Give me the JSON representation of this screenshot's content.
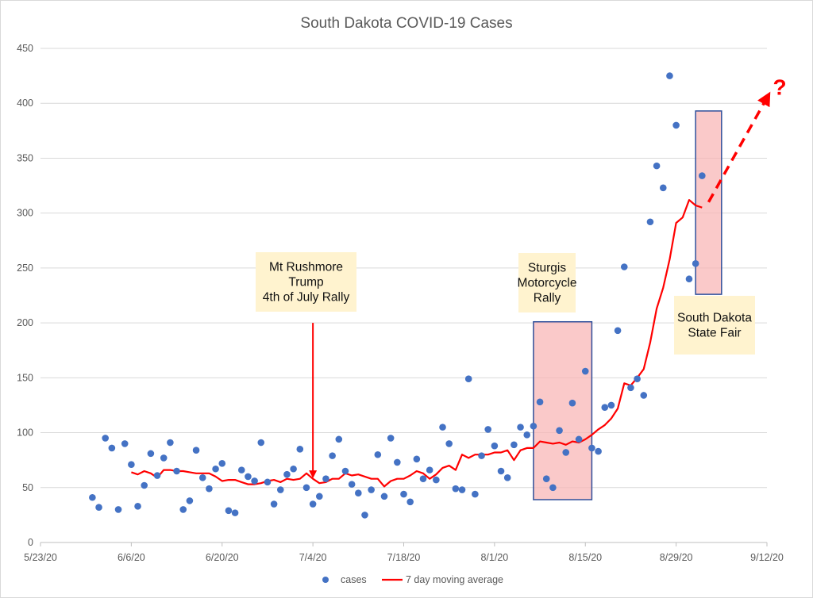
{
  "chart_data": {
    "type": "scatter",
    "title": "South Dakota COVID-19 Cases",
    "xlabel": "",
    "ylabel": "",
    "x_ticks": [
      "5/23/20",
      "6/6/20",
      "6/20/20",
      "7/4/20",
      "7/18/20",
      "8/1/20",
      "8/15/20",
      "8/29/20",
      "9/12/20"
    ],
    "x_range": [
      "5/23/20",
      "9/12/20"
    ],
    "y_ticks": [
      0,
      50,
      100,
      150,
      200,
      250,
      300,
      350,
      400,
      450
    ],
    "ylim": [
      0,
      450
    ],
    "grid": "horizontal",
    "legend_position": "bottom",
    "series": [
      {
        "name": "cases",
        "kind": "scatter",
        "color": "#4472c4",
        "points": [
          [
            "5/31/20",
            41
          ],
          [
            "6/1/20",
            32
          ],
          [
            "6/2/20",
            95
          ],
          [
            "6/3/20",
            86
          ],
          [
            "6/4/20",
            30
          ],
          [
            "6/5/20",
            90
          ],
          [
            "6/6/20",
            71
          ],
          [
            "6/7/20",
            33
          ],
          [
            "6/8/20",
            52
          ],
          [
            "6/9/20",
            81
          ],
          [
            "6/10/20",
            61
          ],
          [
            "6/11/20",
            77
          ],
          [
            "6/12/20",
            91
          ],
          [
            "6/13/20",
            65
          ],
          [
            "6/14/20",
            30
          ],
          [
            "6/15/20",
            38
          ],
          [
            "6/16/20",
            84
          ],
          [
            "6/17/20",
            59
          ],
          [
            "6/18/20",
            49
          ],
          [
            "6/19/20",
            67
          ],
          [
            "6/20/20",
            72
          ],
          [
            "6/21/20",
            29
          ],
          [
            "6/22/20",
            27
          ],
          [
            "6/23/20",
            66
          ],
          [
            "6/24/20",
            60
          ],
          [
            "6/25/20",
            56
          ],
          [
            "6/26/20",
            91
          ],
          [
            "6/27/20",
            55
          ],
          [
            "6/28/20",
            35
          ],
          [
            "6/29/20",
            48
          ],
          [
            "6/30/20",
            62
          ],
          [
            "7/1/20",
            67
          ],
          [
            "7/2/20",
            85
          ],
          [
            "7/3/20",
            50
          ],
          [
            "7/4/20",
            35
          ],
          [
            "7/5/20",
            42
          ],
          [
            "7/6/20",
            58
          ],
          [
            "7/7/20",
            79
          ],
          [
            "7/8/20",
            94
          ],
          [
            "7/9/20",
            65
          ],
          [
            "7/10/20",
            53
          ],
          [
            "7/11/20",
            45
          ],
          [
            "7/12/20",
            25
          ],
          [
            "7/13/20",
            48
          ],
          [
            "7/14/20",
            80
          ],
          [
            "7/15/20",
            42
          ],
          [
            "7/16/20",
            95
          ],
          [
            "7/17/20",
            73
          ],
          [
            "7/18/20",
            44
          ],
          [
            "7/19/20",
            37
          ],
          [
            "7/20/20",
            76
          ],
          [
            "7/21/20",
            58
          ],
          [
            "7/22/20",
            66
          ],
          [
            "7/23/20",
            57
          ],
          [
            "7/24/20",
            105
          ],
          [
            "7/25/20",
            90
          ],
          [
            "7/26/20",
            49
          ],
          [
            "7/27/20",
            48
          ],
          [
            "7/28/20",
            149
          ],
          [
            "7/29/20",
            44
          ],
          [
            "7/30/20",
            79
          ],
          [
            "7/31/20",
            103
          ],
          [
            "8/1/20",
            88
          ],
          [
            "8/2/20",
            65
          ],
          [
            "8/3/20",
            59
          ],
          [
            "8/4/20",
            89
          ],
          [
            "8/5/20",
            105
          ],
          [
            "8/6/20",
            98
          ],
          [
            "8/7/20",
            106
          ],
          [
            "8/8/20",
            128
          ],
          [
            "8/9/20",
            58
          ],
          [
            "8/10/20",
            50
          ],
          [
            "8/11/20",
            102
          ],
          [
            "8/12/20",
            82
          ],
          [
            "8/13/20",
            127
          ],
          [
            "8/14/20",
            94
          ],
          [
            "8/15/20",
            156
          ],
          [
            "8/16/20",
            86
          ],
          [
            "8/17/20",
            83
          ],
          [
            "8/18/20",
            123
          ],
          [
            "8/19/20",
            125
          ],
          [
            "8/20/20",
            193
          ],
          [
            "8/21/20",
            251
          ],
          [
            "8/22/20",
            141
          ],
          [
            "8/23/20",
            149
          ],
          [
            "8/24/20",
            134
          ],
          [
            "8/25/20",
            292
          ],
          [
            "8/26/20",
            343
          ],
          [
            "8/27/20",
            323
          ],
          [
            "8/28/20",
            425
          ],
          [
            "8/29/20",
            380
          ],
          [
            "8/31/20",
            240
          ],
          [
            "9/1/20",
            254
          ],
          [
            "9/2/20",
            334
          ]
        ]
      },
      {
        "name": "7 day moving average",
        "kind": "line",
        "color": "#ff0000",
        "points": [
          [
            "6/6/20",
            64
          ],
          [
            "6/7/20",
            62
          ],
          [
            "6/8/20",
            65
          ],
          [
            "6/9/20",
            63
          ],
          [
            "6/10/20",
            59
          ],
          [
            "6/11/20",
            66
          ],
          [
            "6/12/20",
            66
          ],
          [
            "6/13/20",
            65
          ],
          [
            "6/14/20",
            65
          ],
          [
            "6/15/20",
            64
          ],
          [
            "6/16/20",
            63
          ],
          [
            "6/17/20",
            63
          ],
          [
            "6/18/20",
            63
          ],
          [
            "6/19/20",
            60
          ],
          [
            "6/20/20",
            56
          ],
          [
            "6/21/20",
            57
          ],
          [
            "6/22/20",
            57
          ],
          [
            "6/23/20",
            55
          ],
          [
            "6/24/20",
            53
          ],
          [
            "6/25/20",
            53
          ],
          [
            "6/26/20",
            54
          ],
          [
            "6/27/20",
            56
          ],
          [
            "6/28/20",
            57
          ],
          [
            "6/29/20",
            55
          ],
          [
            "6/30/20",
            58
          ],
          [
            "7/1/20",
            57
          ],
          [
            "7/2/20",
            58
          ],
          [
            "7/3/20",
            63
          ],
          [
            "7/4/20",
            58
          ],
          [
            "7/5/20",
            54
          ],
          [
            "7/6/20",
            55
          ],
          [
            "7/7/20",
            58
          ],
          [
            "7/8/20",
            58
          ],
          [
            "7/9/20",
            63
          ],
          [
            "7/10/20",
            61
          ],
          [
            "7/11/20",
            62
          ],
          [
            "7/12/20",
            60
          ],
          [
            "7/13/20",
            58
          ],
          [
            "7/14/20",
            58
          ],
          [
            "7/15/20",
            51
          ],
          [
            "7/16/20",
            56
          ],
          [
            "7/17/20",
            58
          ],
          [
            "7/18/20",
            58
          ],
          [
            "7/19/20",
            61
          ],
          [
            "7/20/20",
            65
          ],
          [
            "7/21/20",
            63
          ],
          [
            "7/22/20",
            58
          ],
          [
            "7/23/20",
            62
          ],
          [
            "7/24/20",
            68
          ],
          [
            "7/25/20",
            70
          ],
          [
            "7/26/20",
            66
          ],
          [
            "7/27/20",
            80
          ],
          [
            "7/28/20",
            77
          ],
          [
            "7/29/20",
            80
          ],
          [
            "7/30/20",
            80
          ],
          [
            "7/31/20",
            80
          ],
          [
            "8/1/20",
            82
          ],
          [
            "8/2/20",
            82
          ],
          [
            "8/3/20",
            84
          ],
          [
            "8/4/20",
            75
          ],
          [
            "8/5/20",
            84
          ],
          [
            "8/6/20",
            86
          ],
          [
            "8/7/20",
            86
          ],
          [
            "8/8/20",
            92
          ],
          [
            "8/9/20",
            91
          ],
          [
            "8/10/20",
            90
          ],
          [
            "8/11/20",
            91
          ],
          [
            "8/12/20",
            89
          ],
          [
            "8/13/20",
            92
          ],
          [
            "8/14/20",
            91
          ],
          [
            "8/15/20",
            94
          ],
          [
            "8/16/20",
            98
          ],
          [
            "8/17/20",
            103
          ],
          [
            "8/18/20",
            107
          ],
          [
            "8/19/20",
            113
          ],
          [
            "8/20/20",
            122
          ],
          [
            "8/21/20",
            145
          ],
          [
            "8/22/20",
            143
          ],
          [
            "8/23/20",
            150
          ],
          [
            "8/24/20",
            158
          ],
          [
            "8/25/20",
            182
          ],
          [
            "8/26/20",
            213
          ],
          [
            "8/27/20",
            232
          ],
          [
            "8/28/20",
            258
          ],
          [
            "8/29/20",
            291
          ],
          [
            "8/30/20",
            296
          ],
          [
            "8/31/20",
            312
          ],
          [
            "9/1/20",
            307
          ],
          [
            "9/2/20",
            305
          ]
        ]
      }
    ],
    "projection": {
      "color": "#ff0000",
      "style": "dashed-arrow",
      "from": [
        "9/3/20",
        310
      ],
      "to": [
        "9/12/20",
        405
      ],
      "label": "?"
    },
    "annotations": [
      {
        "type": "text",
        "lines": [
          "Mt Rushmore",
          "Trump",
          "4th of July Rally"
        ],
        "date": "7/4/20",
        "arrow_top": 200,
        "arrow_bottom": 62
      },
      {
        "type": "region",
        "label_lines": [
          "Sturgis",
          "Motorcycle",
          "Rally"
        ],
        "x_start": "8/7/20",
        "x_end": "8/16/20",
        "y_low": 39,
        "y_high": 201
      },
      {
        "type": "region",
        "label_lines": [
          "South Dakota",
          "State Fair"
        ],
        "x_start": "9/1/20",
        "x_end": "9/5/20",
        "y_low": 226,
        "y_high": 393
      }
    ]
  },
  "legend": {
    "cases_label": "cases",
    "ma_label": "7 day moving average"
  }
}
